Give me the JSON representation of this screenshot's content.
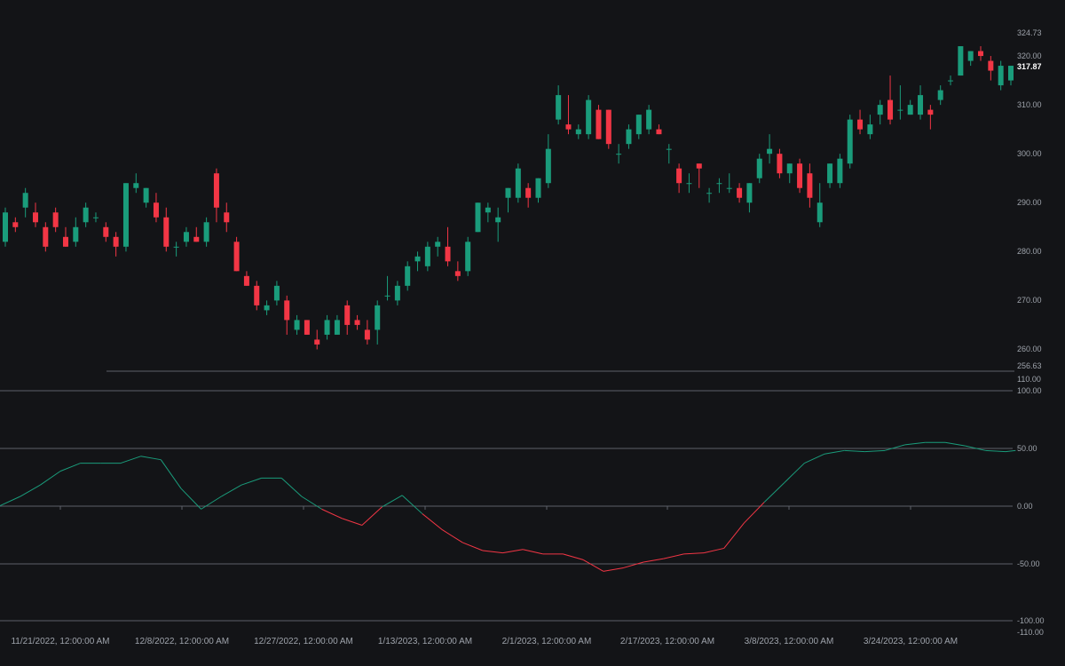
{
  "colors": {
    "background": "#131417",
    "up": "#1a9c7b",
    "down": "#f23645",
    "grid": "#5d6068",
    "text": "#9ea3ab",
    "last_price": "#ffffff"
  },
  "price_axis": {
    "ticks": [
      "320.00",
      "310.00",
      "300.00",
      "290.00",
      "280.00",
      "270.00",
      "260.00"
    ],
    "range_high": "324.73",
    "range_low": "256.63",
    "last_price": "317.87"
  },
  "osc_axis": {
    "ticks": [
      "110.00",
      "100.00",
      "50.00",
      "0.00",
      "-50.00",
      "-100.00",
      "-110.00"
    ]
  },
  "date_labels": [
    "11/21/2022, 12:00:00 AM",
    "12/8/2022, 12:00:00 AM",
    "12/27/2022, 12:00:00 AM",
    "1/13/2023, 12:00:00 AM",
    "2/1/2023, 12:00:00 AM",
    "2/17/2023, 12:00:00 AM",
    "3/8/2023, 12:00:00 AM",
    "3/24/2023, 12:00:00 AM"
  ],
  "chart_data": [
    {
      "type": "candlestick",
      "ylim": [
        256.63,
        324.73
      ],
      "candles": [
        {
          "o": 282,
          "h": 289,
          "l": 281,
          "c": 288
        },
        {
          "o": 286,
          "h": 287,
          "l": 284,
          "c": 285
        },
        {
          "o": 289,
          "h": 293,
          "l": 287,
          "c": 292
        },
        {
          "o": 288,
          "h": 290,
          "l": 285,
          "c": 286
        },
        {
          "o": 285,
          "h": 286,
          "l": 280,
          "c": 281
        },
        {
          "o": 288,
          "h": 289,
          "l": 284,
          "c": 285
        },
        {
          "o": 283,
          "h": 285,
          "l": 281,
          "c": 281
        },
        {
          "o": 282,
          "h": 287,
          "l": 281,
          "c": 285
        },
        {
          "o": 286,
          "h": 290,
          "l": 285,
          "c": 289
        },
        {
          "o": 287,
          "h": 288,
          "l": 286,
          "c": 287
        },
        {
          "o": 285,
          "h": 286,
          "l": 282,
          "c": 283
        },
        {
          "o": 283,
          "h": 284,
          "l": 279,
          "c": 281
        },
        {
          "o": 281,
          "h": 294,
          "l": 280,
          "c": 294
        },
        {
          "o": 293,
          "h": 296,
          "l": 292,
          "c": 294
        },
        {
          "o": 290,
          "h": 293,
          "l": 289,
          "c": 293
        },
        {
          "o": 290,
          "h": 292,
          "l": 286,
          "c": 287
        },
        {
          "o": 287,
          "h": 289,
          "l": 280,
          "c": 281
        },
        {
          "o": 281,
          "h": 282,
          "l": 279,
          "c": 281
        },
        {
          "o": 282,
          "h": 285,
          "l": 281,
          "c": 284
        },
        {
          "o": 283,
          "h": 285,
          "l": 282,
          "c": 282
        },
        {
          "o": 282,
          "h": 287,
          "l": 281,
          "c": 286
        },
        {
          "o": 296,
          "h": 297,
          "l": 286,
          "c": 289
        },
        {
          "o": 288,
          "h": 290,
          "l": 284,
          "c": 286
        },
        {
          "o": 282,
          "h": 283,
          "l": 276,
          "c": 276
        },
        {
          "o": 275,
          "h": 276,
          "l": 273,
          "c": 273
        },
        {
          "o": 273,
          "h": 274,
          "l": 268,
          "c": 269
        },
        {
          "o": 268,
          "h": 270,
          "l": 267,
          "c": 269
        },
        {
          "o": 270,
          "h": 274,
          "l": 269,
          "c": 273
        },
        {
          "o": 270,
          "h": 271,
          "l": 263,
          "c": 266
        },
        {
          "o": 264,
          "h": 267,
          "l": 263,
          "c": 266
        },
        {
          "o": 266,
          "h": 266,
          "l": 263,
          "c": 263
        },
        {
          "o": 262,
          "h": 264,
          "l": 260,
          "c": 261
        },
        {
          "o": 263,
          "h": 267,
          "l": 262,
          "c": 266
        },
        {
          "o": 263,
          "h": 267,
          "l": 263,
          "c": 266
        },
        {
          "o": 269,
          "h": 270,
          "l": 263,
          "c": 265
        },
        {
          "o": 266,
          "h": 267,
          "l": 264,
          "c": 265
        },
        {
          "o": 264,
          "h": 266,
          "l": 261,
          "c": 262
        },
        {
          "o": 264,
          "h": 270,
          "l": 261,
          "c": 269
        },
        {
          "o": 271,
          "h": 275,
          "l": 270,
          "c": 271
        },
        {
          "o": 270,
          "h": 274,
          "l": 269,
          "c": 273
        },
        {
          "o": 273,
          "h": 278,
          "l": 272,
          "c": 277
        },
        {
          "o": 278,
          "h": 280,
          "l": 276,
          "c": 279
        },
        {
          "o": 277,
          "h": 282,
          "l": 276,
          "c": 281
        },
        {
          "o": 281,
          "h": 283,
          "l": 279,
          "c": 282
        },
        {
          "o": 281,
          "h": 285,
          "l": 277,
          "c": 278
        },
        {
          "o": 276,
          "h": 278,
          "l": 274,
          "c": 275
        },
        {
          "o": 276,
          "h": 283,
          "l": 275,
          "c": 282
        },
        {
          "o": 284,
          "h": 290,
          "l": 284,
          "c": 290
        },
        {
          "o": 288,
          "h": 290,
          "l": 286,
          "c": 289
        },
        {
          "o": 286,
          "h": 289,
          "l": 282,
          "c": 287
        },
        {
          "o": 291,
          "h": 293,
          "l": 288,
          "c": 293
        },
        {
          "o": 291,
          "h": 298,
          "l": 290,
          "c": 297
        },
        {
          "o": 293,
          "h": 294,
          "l": 289,
          "c": 291
        },
        {
          "o": 291,
          "h": 295,
          "l": 290,
          "c": 295
        },
        {
          "o": 294,
          "h": 304,
          "l": 293,
          "c": 301
        },
        {
          "o": 307,
          "h": 314,
          "l": 306,
          "c": 312
        },
        {
          "o": 306,
          "h": 312,
          "l": 304,
          "c": 305
        },
        {
          "o": 304,
          "h": 306,
          "l": 303,
          "c": 305
        },
        {
          "o": 304,
          "h": 312,
          "l": 303,
          "c": 311
        },
        {
          "o": 309,
          "h": 310,
          "l": 303,
          "c": 303
        },
        {
          "o": 309,
          "h": 309,
          "l": 301,
          "c": 302
        },
        {
          "o": 300,
          "h": 302,
          "l": 298,
          "c": 300
        },
        {
          "o": 302,
          "h": 306,
          "l": 301,
          "c": 305
        },
        {
          "o": 304,
          "h": 308,
          "l": 303,
          "c": 308
        },
        {
          "o": 305,
          "h": 310,
          "l": 304,
          "c": 309
        },
        {
          "o": 305,
          "h": 306,
          "l": 304,
          "c": 304
        },
        {
          "o": 301,
          "h": 302,
          "l": 298,
          "c": 301
        },
        {
          "o": 297,
          "h": 298,
          "l": 292,
          "c": 294
        },
        {
          "o": 294,
          "h": 296,
          "l": 292,
          "c": 294
        },
        {
          "o": 298,
          "h": 298,
          "l": 293,
          "c": 297
        },
        {
          "o": 292,
          "h": 293,
          "l": 290,
          "c": 292
        },
        {
          "o": 294,
          "h": 295,
          "l": 292,
          "c": 294
        },
        {
          "o": 293,
          "h": 296,
          "l": 292,
          "c": 293
        },
        {
          "o": 293,
          "h": 294,
          "l": 290,
          "c": 291
        },
        {
          "o": 290,
          "h": 294,
          "l": 288,
          "c": 294
        },
        {
          "o": 295,
          "h": 300,
          "l": 294,
          "c": 299
        },
        {
          "o": 300,
          "h": 304,
          "l": 298,
          "c": 301
        },
        {
          "o": 300,
          "h": 301,
          "l": 295,
          "c": 296
        },
        {
          "o": 296,
          "h": 298,
          "l": 294,
          "c": 298
        },
        {
          "o": 298,
          "h": 299,
          "l": 292,
          "c": 293
        },
        {
          "o": 296,
          "h": 298,
          "l": 289,
          "c": 291
        },
        {
          "o": 286,
          "h": 294,
          "l": 285,
          "c": 290
        },
        {
          "o": 294,
          "h": 298,
          "l": 293,
          "c": 298
        },
        {
          "o": 294,
          "h": 300,
          "l": 293,
          "c": 299
        },
        {
          "o": 298,
          "h": 308,
          "l": 297,
          "c": 307
        },
        {
          "o": 307,
          "h": 309,
          "l": 304,
          "c": 305
        },
        {
          "o": 304,
          "h": 308,
          "l": 303,
          "c": 306
        },
        {
          "o": 308,
          "h": 311,
          "l": 306,
          "c": 310
        },
        {
          "o": 311,
          "h": 316,
          "l": 306,
          "c": 307
        },
        {
          "o": 309,
          "h": 314,
          "l": 307,
          "c": 309
        },
        {
          "o": 308,
          "h": 311,
          "l": 308,
          "c": 310
        },
        {
          "o": 308,
          "h": 314,
          "l": 307,
          "c": 312
        },
        {
          "o": 309,
          "h": 310,
          "l": 305,
          "c": 308
        },
        {
          "o": 311,
          "h": 314,
          "l": 310,
          "c": 313
        },
        {
          "o": 315,
          "h": 316,
          "l": 314,
          "c": 315
        },
        {
          "o": 316,
          "h": 322,
          "l": 316,
          "c": 322
        },
        {
          "o": 319,
          "h": 321,
          "l": 318,
          "c": 321
        },
        {
          "o": 321,
          "h": 322,
          "l": 319,
          "c": 320
        },
        {
          "o": 319,
          "h": 320,
          "l": 315,
          "c": 317
        },
        {
          "o": 314,
          "h": 319,
          "l": 313,
          "c": 318
        },
        {
          "o": 315,
          "h": 318,
          "l": 314,
          "c": 318
        }
      ]
    },
    {
      "type": "line",
      "ylim": [
        -110,
        110
      ],
      "reference_lines": [
        100,
        50,
        0,
        -50,
        -100
      ],
      "up_color": "#1a9c7b",
      "down_color": "#f23645",
      "x": [
        0,
        2,
        4,
        6,
        8,
        10,
        12,
        14,
        16,
        18,
        20,
        22,
        24,
        26,
        28,
        30,
        32,
        34,
        36,
        38,
        40,
        42,
        44,
        46,
        48,
        50,
        52,
        54,
        56,
        58,
        60,
        62,
        64,
        66,
        68,
        70,
        72,
        74,
        76,
        78,
        80,
        82,
        84,
        86,
        88,
        90,
        92,
        94,
        96,
        98,
        100,
        101
      ],
      "values": [
        0,
        8,
        18,
        30,
        37,
        37,
        37,
        43,
        40,
        15,
        -3,
        8,
        18,
        24,
        24,
        8,
        -3,
        -11,
        -17,
        -1,
        9,
        -7,
        -21,
        -32,
        -39,
        -41,
        -38,
        -42,
        -42,
        -47,
        -57,
        -54,
        -49,
        -46,
        -42,
        -41,
        -37,
        -15,
        3,
        20,
        37,
        45,
        48,
        47,
        48,
        53,
        55,
        55,
        52,
        48,
        47,
        48
      ]
    }
  ]
}
